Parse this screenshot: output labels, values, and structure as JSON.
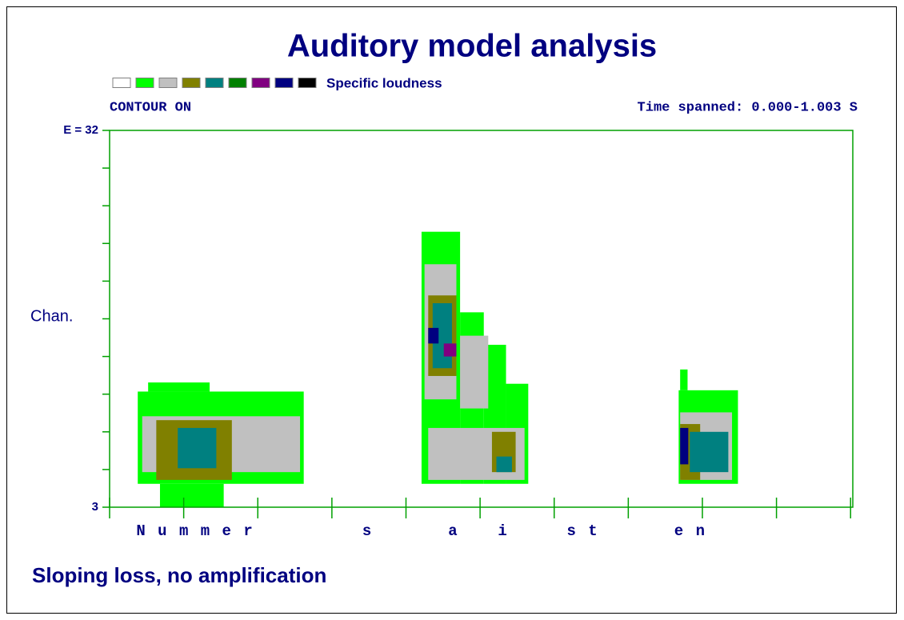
{
  "chart_data": {
    "type": "spectrogram",
    "title": "Auditory model analysis",
    "legend_title": "Specific loudness",
    "legend_colors": [
      "#ffffff",
      "#00ff00",
      "#c0c0c0",
      "#808000",
      "#008080",
      "#008000",
      "#800080",
      "#000080",
      "#000000"
    ],
    "status": "CONTOUR ON",
    "time_label": "Time spanned: 0.000-1.003 S",
    "ylabel": "Chan.",
    "footer": "Sloping loss, no amplification",
    "xlim": [
      0,
      1.003
    ],
    "xticks": [
      0,
      0.1,
      0.2,
      0.3,
      0.4,
      0.5,
      0.6,
      0.7,
      0.8,
      0.9,
      1.0
    ],
    "ylim": [
      3,
      32
    ],
    "yticks": [
      3,
      {
        "value": 32,
        "label": "E = 32"
      }
    ],
    "yminor": [
      5.9,
      8.8,
      11.7,
      14.6,
      17.5,
      20.4,
      23.3,
      26.2,
      29.1
    ],
    "segments": [
      {
        "label": "N u m m e r",
        "t": 0.036
      },
      {
        "label": "s",
        "t": 0.341
      },
      {
        "label": "a",
        "t": 0.457
      },
      {
        "label": "i",
        "t": 0.524
      },
      {
        "label": "s t",
        "t": 0.617
      },
      {
        "label": "e n",
        "t": 0.762
      }
    ],
    "cells": [
      [
        0.038,
        0.262,
        4.8,
        11.9,
        2
      ],
      [
        0.068,
        0.154,
        3,
        4.8,
        2
      ],
      [
        0.052,
        0.135,
        11.9,
        12.6,
        2
      ],
      [
        0.044,
        0.257,
        5.7,
        10.0,
        3
      ],
      [
        0.063,
        0.165,
        5.1,
        9.7,
        4
      ],
      [
        0.092,
        0.144,
        6.0,
        9.1,
        5
      ],
      [
        0.421,
        0.473,
        4.8,
        24.2,
        2
      ],
      [
        0.473,
        0.505,
        4.8,
        18.0,
        2
      ],
      [
        0.505,
        0.535,
        4.8,
        15.5,
        2
      ],
      [
        0.535,
        0.565,
        4.8,
        12.5,
        2
      ],
      [
        0.425,
        0.468,
        11.3,
        21.7,
        3
      ],
      [
        0.43,
        0.56,
        5.1,
        9.1,
        3
      ],
      [
        0.473,
        0.511,
        10.6,
        16.2,
        3
      ],
      [
        0.43,
        0.468,
        13.1,
        19.3,
        4
      ],
      [
        0.516,
        0.548,
        5.7,
        8.8,
        4
      ],
      [
        0.436,
        0.462,
        13.7,
        18.7,
        5
      ],
      [
        0.522,
        0.543,
        5.7,
        6.9,
        5
      ],
      [
        0.451,
        0.468,
        14.6,
        15.6,
        7
      ],
      [
        0.43,
        0.444,
        15.6,
        16.8,
        8
      ],
      [
        0.768,
        0.848,
        4.8,
        12.0,
        2
      ],
      [
        0.77,
        0.78,
        12.0,
        13.6,
        2
      ],
      [
        0.77,
        0.84,
        5.1,
        10.3,
        3
      ],
      [
        0.77,
        0.797,
        5.1,
        9.4,
        4
      ],
      [
        0.783,
        0.835,
        5.7,
        8.8,
        5
      ],
      [
        0.77,
        0.781,
        6.3,
        9.1,
        8
      ]
    ]
  }
}
